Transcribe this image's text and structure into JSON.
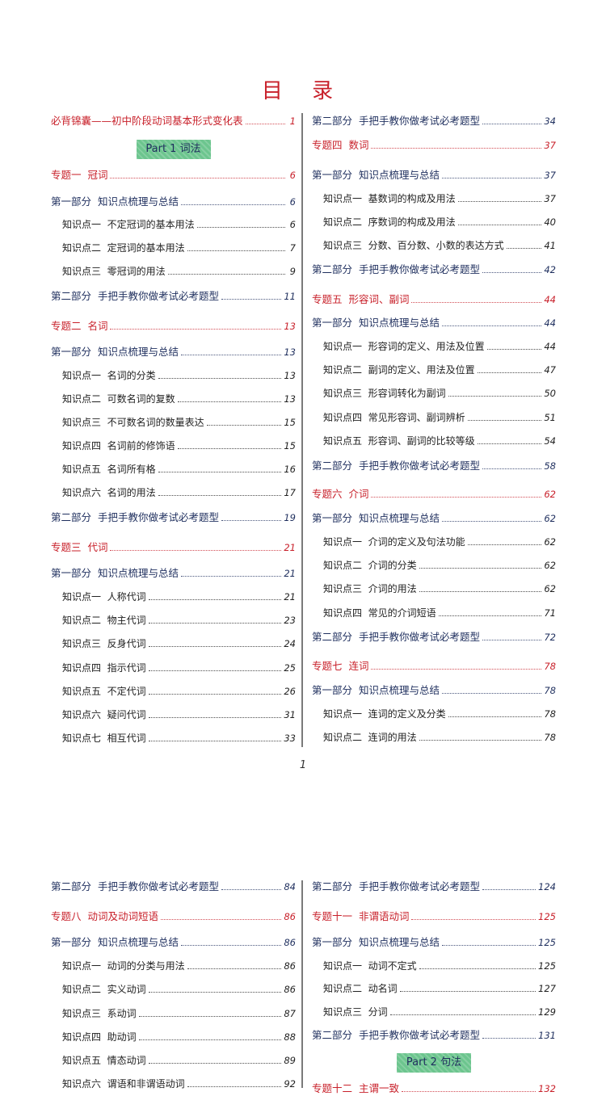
{
  "title": "目 录",
  "page_number": "1",
  "colors": {
    "topic": "#c8202a",
    "section": "#1f2f5e",
    "item": "#222222",
    "badge": "#6cc58e"
  },
  "page1": {
    "left": [
      {
        "type": "topic",
        "label": "必背锦囊——初中阶段动词基本形式变化表",
        "page": "1"
      },
      {
        "type": "badge",
        "label": "Part 1  词法"
      },
      {
        "type": "topic",
        "label": "专题一  冠词",
        "page": "6"
      },
      {
        "type": "section",
        "label": "第一部分  知识点梳理与总结",
        "page": "6"
      },
      {
        "type": "item",
        "label": "知识点一  不定冠词的基本用法",
        "page": "6"
      },
      {
        "type": "item",
        "label": "知识点二  定冠词的基本用法",
        "page": "7"
      },
      {
        "type": "item",
        "label": "知识点三  零冠词的用法",
        "page": "9"
      },
      {
        "type": "section",
        "label": "第二部分  手把手教你做考试必考题型",
        "page": "11"
      },
      {
        "type": "topic",
        "label": "专题二  名词",
        "page": "13"
      },
      {
        "type": "section",
        "label": "第一部分  知识点梳理与总结",
        "page": "13"
      },
      {
        "type": "item",
        "label": "知识点一  名词的分类",
        "page": "13"
      },
      {
        "type": "item",
        "label": "知识点二  可数名词的复数",
        "page": "13"
      },
      {
        "type": "item",
        "label": "知识点三  不可数名词的数量表达",
        "page": "15"
      },
      {
        "type": "item",
        "label": "知识点四  名词前的修饰语",
        "page": "15"
      },
      {
        "type": "item",
        "label": "知识点五  名词所有格",
        "page": "16"
      },
      {
        "type": "item",
        "label": "知识点六  名词的用法",
        "page": "17"
      },
      {
        "type": "section",
        "label": "第二部分  手把手教你做考试必考题型",
        "page": "19"
      },
      {
        "type": "topic",
        "label": "专题三  代词",
        "page": "21"
      },
      {
        "type": "section",
        "label": "第一部分  知识点梳理与总结",
        "page": "21"
      },
      {
        "type": "item",
        "label": "知识点一  人称代词",
        "page": "21"
      },
      {
        "type": "item",
        "label": "知识点二  物主代词",
        "page": "23"
      },
      {
        "type": "item",
        "label": "知识点三  反身代词",
        "page": "24"
      },
      {
        "type": "item",
        "label": "知识点四  指示代词",
        "page": "25"
      },
      {
        "type": "item",
        "label": "知识点五  不定代词",
        "page": "26"
      },
      {
        "type": "item",
        "label": "知识点六  疑问代词",
        "page": "31"
      },
      {
        "type": "item",
        "label": "知识点七  相互代词",
        "page": "33"
      }
    ],
    "right": [
      {
        "type": "section",
        "label": "第二部分  手把手教你做考试必考题型",
        "page": "34"
      },
      {
        "type": "topic",
        "label": "专题四  数词",
        "page": "37"
      },
      {
        "type": "section",
        "label": "第一部分  知识点梳理与总结",
        "page": "37"
      },
      {
        "type": "item",
        "label": "知识点一  基数词的构成及用法",
        "page": "37"
      },
      {
        "type": "item",
        "label": "知识点二  序数词的构成及用法",
        "page": "40"
      },
      {
        "type": "item",
        "label": "知识点三  分数、百分数、小数的表达方式",
        "page": "41"
      },
      {
        "type": "section",
        "label": "第二部分  手把手教你做考试必考题型",
        "page": "42"
      },
      {
        "type": "topic",
        "label": "专题五  形容词、副词",
        "page": "44"
      },
      {
        "type": "section",
        "label": "第一部分  知识点梳理与总结",
        "page": "44"
      },
      {
        "type": "item",
        "label": "知识点一  形容词的定义、用法及位置",
        "page": "44"
      },
      {
        "type": "item",
        "label": "知识点二  副词的定义、用法及位置",
        "page": "47"
      },
      {
        "type": "item",
        "label": "知识点三  形容词转化为副词",
        "page": "50"
      },
      {
        "type": "item",
        "label": "知识点四  常见形容词、副词辨析",
        "page": "51"
      },
      {
        "type": "item",
        "label": "知识点五  形容词、副词的比较等级",
        "page": "54"
      },
      {
        "type": "section",
        "label": "第二部分  手把手教你做考试必考题型",
        "page": "58"
      },
      {
        "type": "topic",
        "label": "专题六  介词",
        "page": "62"
      },
      {
        "type": "section",
        "label": "第一部分  知识点梳理与总结",
        "page": "62"
      },
      {
        "type": "item",
        "label": "知识点一  介词的定义及句法功能",
        "page": "62"
      },
      {
        "type": "item",
        "label": "知识点二  介词的分类",
        "page": "62"
      },
      {
        "type": "item",
        "label": "知识点三  介词的用法",
        "page": "62"
      },
      {
        "type": "item",
        "label": "知识点四  常见的介词短语",
        "page": "71"
      },
      {
        "type": "section",
        "label": "第二部分  手把手教你做考试必考题型",
        "page": "72"
      },
      {
        "type": "topic",
        "label": "专题七  连词",
        "page": "78"
      },
      {
        "type": "section",
        "label": "第一部分  知识点梳理与总结",
        "page": "78"
      },
      {
        "type": "item",
        "label": "知识点一  连词的定义及分类",
        "page": "78"
      },
      {
        "type": "item",
        "label": "知识点二  连词的用法",
        "page": "78"
      }
    ]
  },
  "page2": {
    "left": [
      {
        "type": "section",
        "label": "第二部分  手把手教你做考试必考题型",
        "page": "84"
      },
      {
        "type": "topic",
        "label": "专题八  动词及动词短语",
        "page": "86"
      },
      {
        "type": "section",
        "label": "第一部分  知识点梳理与总结",
        "page": "86"
      },
      {
        "type": "item",
        "label": "知识点一  动词的分类与用法",
        "page": "86"
      },
      {
        "type": "item",
        "label": "知识点二  实义动词",
        "page": "86"
      },
      {
        "type": "item",
        "label": "知识点三  系动词",
        "page": "87"
      },
      {
        "type": "item",
        "label": "知识点四  助动词",
        "page": "88"
      },
      {
        "type": "item",
        "label": "知识点五  情态动词",
        "page": "89"
      },
      {
        "type": "item",
        "label": "知识点六  谓语和非谓语动词",
        "page": "92"
      }
    ],
    "right": [
      {
        "type": "section",
        "label": "第二部分  手把手教你做考试必考题型",
        "page": "124"
      },
      {
        "type": "topic",
        "label": "专题十一  非谓语动词",
        "page": "125"
      },
      {
        "type": "section",
        "label": "第一部分  知识点梳理与总结",
        "page": "125"
      },
      {
        "type": "item",
        "label": "知识点一  动词不定式",
        "page": "125"
      },
      {
        "type": "item",
        "label": "知识点二  动名词",
        "page": "127"
      },
      {
        "type": "item",
        "label": "知识点三  分词",
        "page": "129"
      },
      {
        "type": "section",
        "label": "第二部分  手把手教你做考试必考题型",
        "page": "131"
      },
      {
        "type": "badge",
        "label": "Part 2  句法"
      },
      {
        "type": "topic",
        "label": "专题十二  主谓一致",
        "page": "132"
      }
    ]
  }
}
